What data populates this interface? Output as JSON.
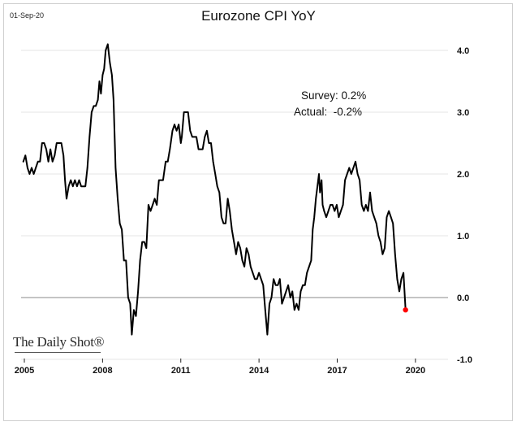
{
  "header": {
    "date": "01-Sep-20",
    "title": "Eurozone CPI YoY"
  },
  "annotation": {
    "survey": "Survey: 0.2%",
    "actual": "Actual:  -0.2%"
  },
  "brand": "The Daily Shot®",
  "colors": {
    "line": "#000000",
    "latest_point": "#ff0000",
    "grid": "#e6e6e6",
    "zero_line": "#888888"
  },
  "chart_data": {
    "type": "line",
    "title": "Eurozone CPI YoY",
    "xlabel": "",
    "ylabel": "",
    "grid": true,
    "xlim": [
      2005.0,
      2021.0
    ],
    "ylim": [
      -1.0,
      4.0
    ],
    "x_ticks": [
      2005,
      2008,
      2011,
      2014,
      2017,
      2020
    ],
    "y_ticks": [
      4.0,
      3.0,
      2.0,
      1.0,
      0.0,
      -1.0
    ],
    "series": [
      {
        "points": [
          [
            2004.96,
            2.2
          ],
          [
            2005.04,
            2.3
          ],
          [
            2005.12,
            2.1
          ],
          [
            2005.2,
            2.0
          ],
          [
            2005.28,
            2.1
          ],
          [
            2005.36,
            2.0
          ],
          [
            2005.44,
            2.1
          ],
          [
            2005.52,
            2.2
          ],
          [
            2005.6,
            2.2
          ],
          [
            2005.68,
            2.5
          ],
          [
            2005.76,
            2.5
          ],
          [
            2005.84,
            2.4
          ],
          [
            2005.92,
            2.2
          ],
          [
            2006.0,
            2.4
          ],
          [
            2006.08,
            2.2
          ],
          [
            2006.16,
            2.3
          ],
          [
            2006.24,
            2.5
          ],
          [
            2006.32,
            2.5
          ],
          [
            2006.42,
            2.5
          ],
          [
            2006.5,
            2.3
          ],
          [
            2006.56,
            1.9
          ],
          [
            2006.62,
            1.6
          ],
          [
            2006.7,
            1.8
          ],
          [
            2006.78,
            1.9
          ],
          [
            2006.86,
            1.8
          ],
          [
            2006.94,
            1.9
          ],
          [
            2007.02,
            1.8
          ],
          [
            2007.1,
            1.9
          ],
          [
            2007.18,
            1.8
          ],
          [
            2007.26,
            1.8
          ],
          [
            2007.34,
            1.8
          ],
          [
            2007.42,
            2.1
          ],
          [
            2007.5,
            2.6
          ],
          [
            2007.58,
            3.0
          ],
          [
            2007.66,
            3.1
          ],
          [
            2007.74,
            3.1
          ],
          [
            2007.82,
            3.2
          ],
          [
            2007.88,
            3.5
          ],
          [
            2007.94,
            3.3
          ],
          [
            2008.0,
            3.6
          ],
          [
            2008.06,
            3.7
          ],
          [
            2008.12,
            4.0
          ],
          [
            2008.2,
            4.1
          ],
          [
            2008.28,
            3.8
          ],
          [
            2008.36,
            3.6
          ],
          [
            2008.42,
            3.2
          ],
          [
            2008.5,
            2.1
          ],
          [
            2008.58,
            1.6
          ],
          [
            2008.66,
            1.2
          ],
          [
            2008.74,
            1.1
          ],
          [
            2008.82,
            0.6
          ],
          [
            2008.9,
            0.6
          ],
          [
            2008.98,
            0.0
          ],
          [
            2009.06,
            -0.1
          ],
          [
            2009.12,
            -0.6
          ],
          [
            2009.2,
            -0.2
          ],
          [
            2009.28,
            -0.3
          ],
          [
            2009.36,
            0.1
          ],
          [
            2009.44,
            0.6
          ],
          [
            2009.52,
            0.9
          ],
          [
            2009.6,
            0.9
          ],
          [
            2009.68,
            0.8
          ],
          [
            2009.76,
            1.5
          ],
          [
            2009.84,
            1.4
          ],
          [
            2009.92,
            1.5
          ],
          [
            2010.0,
            1.6
          ],
          [
            2010.08,
            1.5
          ],
          [
            2010.16,
            1.9
          ],
          [
            2010.24,
            1.9
          ],
          [
            2010.32,
            1.9
          ],
          [
            2010.42,
            2.2
          ],
          [
            2010.5,
            2.2
          ],
          [
            2010.58,
            2.4
          ],
          [
            2010.68,
            2.7
          ],
          [
            2010.76,
            2.8
          ],
          [
            2010.84,
            2.7
          ],
          [
            2010.92,
            2.8
          ],
          [
            2011.0,
            2.5
          ],
          [
            2011.04,
            2.6
          ],
          [
            2011.12,
            3.0
          ],
          [
            2011.2,
            3.0
          ],
          [
            2011.28,
            3.0
          ],
          [
            2011.36,
            2.7
          ],
          [
            2011.44,
            2.6
          ],
          [
            2011.52,
            2.6
          ],
          [
            2011.6,
            2.6
          ],
          [
            2011.68,
            2.4
          ],
          [
            2011.76,
            2.4
          ],
          [
            2011.84,
            2.4
          ],
          [
            2011.92,
            2.6
          ],
          [
            2012.0,
            2.7
          ],
          [
            2012.08,
            2.5
          ],
          [
            2012.16,
            2.5
          ],
          [
            2012.24,
            2.2
          ],
          [
            2012.32,
            2.0
          ],
          [
            2012.4,
            1.8
          ],
          [
            2012.48,
            1.7
          ],
          [
            2012.56,
            1.3
          ],
          [
            2012.64,
            1.2
          ],
          [
            2012.72,
            1.2
          ],
          [
            2012.8,
            1.6
          ],
          [
            2012.88,
            1.4
          ],
          [
            2012.96,
            1.1
          ],
          [
            2013.04,
            0.9
          ],
          [
            2013.12,
            0.7
          ],
          [
            2013.2,
            0.9
          ],
          [
            2013.28,
            0.8
          ],
          [
            2013.36,
            0.6
          ],
          [
            2013.44,
            0.5
          ],
          [
            2013.52,
            0.8
          ],
          [
            2013.6,
            0.7
          ],
          [
            2013.68,
            0.5
          ],
          [
            2013.76,
            0.4
          ],
          [
            2013.84,
            0.3
          ],
          [
            2013.92,
            0.3
          ],
          [
            2014.0,
            0.4
          ],
          [
            2014.08,
            0.3
          ],
          [
            2014.16,
            0.2
          ],
          [
            2014.24,
            -0.2
          ],
          [
            2014.32,
            -0.6
          ],
          [
            2014.4,
            -0.1
          ],
          [
            2014.48,
            0.0
          ],
          [
            2014.56,
            0.3
          ],
          [
            2014.64,
            0.2
          ],
          [
            2014.72,
            0.2
          ],
          [
            2014.8,
            0.3
          ],
          [
            2014.88,
            -0.1
          ],
          [
            2014.96,
            0.0
          ],
          [
            2015.04,
            0.1
          ],
          [
            2015.12,
            0.2
          ],
          [
            2015.2,
            0.0
          ],
          [
            2015.28,
            0.1
          ],
          [
            2015.36,
            -0.2
          ],
          [
            2015.44,
            -0.1
          ],
          [
            2015.52,
            -0.2
          ],
          [
            2015.6,
            0.1
          ],
          [
            2015.68,
            0.2
          ],
          [
            2015.76,
            0.2
          ],
          [
            2015.84,
            0.4
          ],
          [
            2015.92,
            0.5
          ],
          [
            2016.0,
            0.6
          ],
          [
            2016.06,
            1.1
          ],
          [
            2016.12,
            1.3
          ],
          [
            2016.18,
            1.6
          ],
          [
            2016.24,
            1.8
          ],
          [
            2016.3,
            2.0
          ],
          [
            2016.34,
            1.7
          ],
          [
            2016.4,
            1.9
          ],
          [
            2016.44,
            1.5
          ],
          [
            2016.5,
            1.4
          ],
          [
            2016.58,
            1.3
          ],
          [
            2016.66,
            1.4
          ],
          [
            2016.74,
            1.5
          ],
          [
            2016.82,
            1.5
          ],
          [
            2016.9,
            1.4
          ],
          [
            2016.98,
            1.5
          ],
          [
            2017.06,
            1.3
          ],
          [
            2017.14,
            1.4
          ],
          [
            2017.22,
            1.5
          ],
          [
            2017.3,
            1.9
          ],
          [
            2017.38,
            2.0
          ],
          [
            2017.46,
            2.1
          ],
          [
            2017.54,
            2.0
          ],
          [
            2017.62,
            2.1
          ],
          [
            2017.7,
            2.2
          ],
          [
            2017.78,
            2.0
          ],
          [
            2017.86,
            1.9
          ],
          [
            2017.94,
            1.5
          ],
          [
            2018.02,
            1.4
          ],
          [
            2018.1,
            1.5
          ],
          [
            2018.18,
            1.4
          ],
          [
            2018.26,
            1.7
          ],
          [
            2018.34,
            1.4
          ],
          [
            2018.42,
            1.3
          ],
          [
            2018.5,
            1.2
          ],
          [
            2018.58,
            1.0
          ],
          [
            2018.66,
            0.9
          ],
          [
            2018.74,
            0.7
          ],
          [
            2018.82,
            0.8
          ],
          [
            2018.9,
            1.3
          ],
          [
            2018.98,
            1.4
          ],
          [
            2019.06,
            1.3
          ],
          [
            2019.14,
            1.2
          ],
          [
            2019.22,
            0.7
          ],
          [
            2019.3,
            0.3
          ],
          [
            2019.38,
            0.1
          ],
          [
            2019.46,
            0.3
          ],
          [
            2019.54,
            0.4
          ],
          [
            2019.62,
            -0.2
          ]
        ]
      }
    ],
    "latest_point": [
      2019.62,
      -0.2
    ]
  }
}
